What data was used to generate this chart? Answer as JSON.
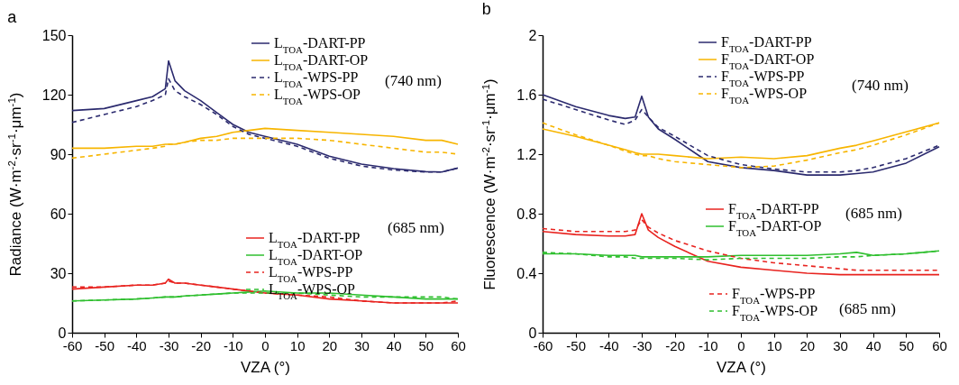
{
  "chart_data": [
    {
      "type": "line",
      "title": "a",
      "xlabel": "VZA (°)",
      "ylabel": "Radiance (W·m$^{-2}$·sr$^{-1}$·μm$^{-1}$)",
      "xlim": [
        -60,
        60
      ],
      "xticks": [
        -60,
        -50,
        -40,
        -30,
        -20,
        -10,
        0,
        10,
        20,
        30,
        40,
        50,
        60
      ],
      "ylim": [
        0,
        150
      ],
      "yticks": [
        0,
        30,
        60,
        90,
        120,
        150
      ],
      "grid": false,
      "legend": "right",
      "annotations": [
        "(740 nm)",
        "(685 nm)"
      ],
      "x": [
        -60,
        -50,
        -40,
        -35,
        -31,
        -30,
        -28,
        -25,
        -20,
        -15,
        -10,
        -5,
        0,
        10,
        20,
        30,
        40,
        50,
        55,
        60
      ],
      "series": [
        {
          "name": "L$_{TOA}$-DART-PP",
          "color": "#2b2a6e",
          "line_style": "solid",
          "values": [
            112,
            113,
            117,
            119,
            123,
            137,
            127,
            122,
            117,
            111,
            105,
            101,
            99,
            95,
            89,
            85,
            82.7,
            81.2,
            81,
            83
          ]
        },
        {
          "name": "L$_{TOA}$-DART-OP",
          "color": "#f7b500",
          "line_style": "solid",
          "values": [
            93,
            93,
            94,
            94,
            95,
            95,
            95,
            96,
            98,
            99,
            101,
            102,
            103,
            102,
            101,
            100,
            99,
            97,
            97,
            95
          ]
        },
        {
          "name": "L$_{TOA}$-WPS-PP",
          "color": "#2b2a6e",
          "line_style": "dashed",
          "values": [
            106,
            110,
            114,
            117,
            120,
            128,
            122,
            119,
            115,
            110,
            104,
            100,
            98,
            94,
            88,
            84,
            82,
            81,
            81,
            83
          ]
        },
        {
          "name": "L$_{TOA}$-WPS-OP",
          "color": "#f7b500",
          "line_style": "dashed",
          "values": [
            88,
            90,
            92,
            93,
            94,
            95,
            95,
            96,
            97,
            97,
            98,
            98,
            98,
            98,
            97,
            95,
            93,
            91,
            91,
            90
          ]
        },
        {
          "name": "L$_{TOA}$-DART-PP",
          "color": "#e8231f",
          "line_style": "solid",
          "values": [
            22,
            23,
            24,
            24,
            25,
            27,
            25,
            25,
            24,
            23,
            22,
            21,
            20,
            19,
            17,
            16,
            15,
            15,
            15,
            15
          ]
        },
        {
          "name": "L$_{TOA}$-DART-OP",
          "color": "#2fbf2f",
          "line_style": "solid",
          "values": [
            16,
            16.5,
            17,
            17.5,
            18,
            18,
            18,
            18.5,
            19,
            19.5,
            20,
            20.5,
            21,
            20,
            20,
            19,
            18,
            17,
            17,
            17
          ]
        },
        {
          "name": "L$_{TOA}$-WPS-PP",
          "color": "#e8231f",
          "line_style": "dashed",
          "values": [
            23,
            23,
            24,
            24,
            25,
            26,
            25,
            25,
            24,
            23,
            22,
            21,
            20,
            19,
            18,
            16,
            15,
            15,
            15,
            16
          ]
        },
        {
          "name": "L$_{TOA}$-WPS-OP",
          "color": "#2fbf2f",
          "line_style": "dashed",
          "values": [
            16,
            16.5,
            17,
            17.5,
            18,
            18,
            18,
            18.5,
            19,
            19.5,
            20,
            20,
            20,
            20,
            19,
            18,
            18,
            18,
            18,
            17
          ]
        }
      ]
    },
    {
      "type": "line",
      "title": "b",
      "xlabel": "VZA (°)",
      "ylabel": "Fluorescence (W·m$^{-2}$·sr$^{-1}$·μm$^{-1}$)",
      "xlim": [
        -60,
        60
      ],
      "xticks": [
        -60,
        -50,
        -40,
        -30,
        -20,
        -10,
        0,
        10,
        20,
        30,
        40,
        50,
        60
      ],
      "ylim": [
        0,
        2
      ],
      "yticks": [
        0,
        0.4,
        0.8,
        1.2,
        1.6,
        2
      ],
      "grid": false,
      "legend": "right",
      "annotations": [
        "(740 nm)",
        "(685 nm)",
        "(685 nm)"
      ],
      "x": [
        -60,
        -50,
        -40,
        -35,
        -32,
        -30,
        -28,
        -25,
        -20,
        -10,
        0,
        10,
        20,
        30,
        35,
        40,
        50,
        60
      ],
      "series": [
        {
          "name": "F$_{TOA}$-DART-PP",
          "color": "#2b2a6e",
          "line_style": "solid",
          "values": [
            1.6,
            1.52,
            1.46,
            1.44,
            1.45,
            1.59,
            1.45,
            1.37,
            1.3,
            1.15,
            1.11,
            1.09,
            1.06,
            1.06,
            1.07,
            1.08,
            1.14,
            1.25
          ]
        },
        {
          "name": "F$_{TOA}$-DART-OP",
          "color": "#f7b500",
          "line_style": "solid",
          "values": [
            1.37,
            1.32,
            1.26,
            1.23,
            1.21,
            1.2,
            1.2,
            1.2,
            1.19,
            1.17,
            1.18,
            1.17,
            1.19,
            1.24,
            1.26,
            1.29,
            1.35,
            1.41
          ]
        },
        {
          "name": "F$_{TOA}$-WPS-PP",
          "color": "#2b2a6e",
          "line_style": "dashed",
          "values": [
            1.57,
            1.5,
            1.43,
            1.4,
            1.43,
            1.5,
            1.45,
            1.38,
            1.32,
            1.19,
            1.13,
            1.1,
            1.08,
            1.08,
            1.09,
            1.11,
            1.17,
            1.26
          ]
        },
        {
          "name": "F$_{TOA}$-WPS-OP",
          "color": "#f7b500",
          "line_style": "dashed",
          "values": [
            1.41,
            1.33,
            1.26,
            1.22,
            1.2,
            1.19,
            1.19,
            1.17,
            1.15,
            1.13,
            1.11,
            1.12,
            1.16,
            1.21,
            1.23,
            1.26,
            1.33,
            1.41
          ]
        },
        {
          "name": "F$_{TOA}$-DART-PP",
          "color": "#e8231f",
          "line_style": "solid",
          "values": [
            0.68,
            0.66,
            0.65,
            0.65,
            0.66,
            0.8,
            0.69,
            0.64,
            0.58,
            0.48,
            0.44,
            0.42,
            0.4,
            0.39,
            0.39,
            0.39,
            0.39,
            0.39
          ]
        },
        {
          "name": "F$_{TOA}$-DART-OP",
          "color": "#2fbf2f",
          "line_style": "solid",
          "values": [
            0.53,
            0.53,
            0.52,
            0.52,
            0.52,
            0.51,
            0.51,
            0.51,
            0.51,
            0.51,
            0.52,
            0.52,
            0.52,
            0.53,
            0.54,
            0.52,
            0.53,
            0.55
          ]
        },
        {
          "name": "F$_{TOA}$-WPS-PP",
          "color": "#e8231f",
          "line_style": "dashed",
          "values": [
            0.7,
            0.68,
            0.68,
            0.68,
            0.69,
            0.76,
            0.71,
            0.67,
            0.62,
            0.55,
            0.5,
            0.47,
            0.45,
            0.43,
            0.42,
            0.42,
            0.42,
            0.42
          ]
        },
        {
          "name": "F$_{TOA}$-WPS-OP",
          "color": "#2fbf2f",
          "line_style": "dashed",
          "values": [
            0.54,
            0.53,
            0.51,
            0.51,
            0.5,
            0.5,
            0.5,
            0.5,
            0.5,
            0.49,
            0.5,
            0.5,
            0.5,
            0.51,
            0.51,
            0.52,
            0.53,
            0.55
          ]
        }
      ]
    }
  ]
}
